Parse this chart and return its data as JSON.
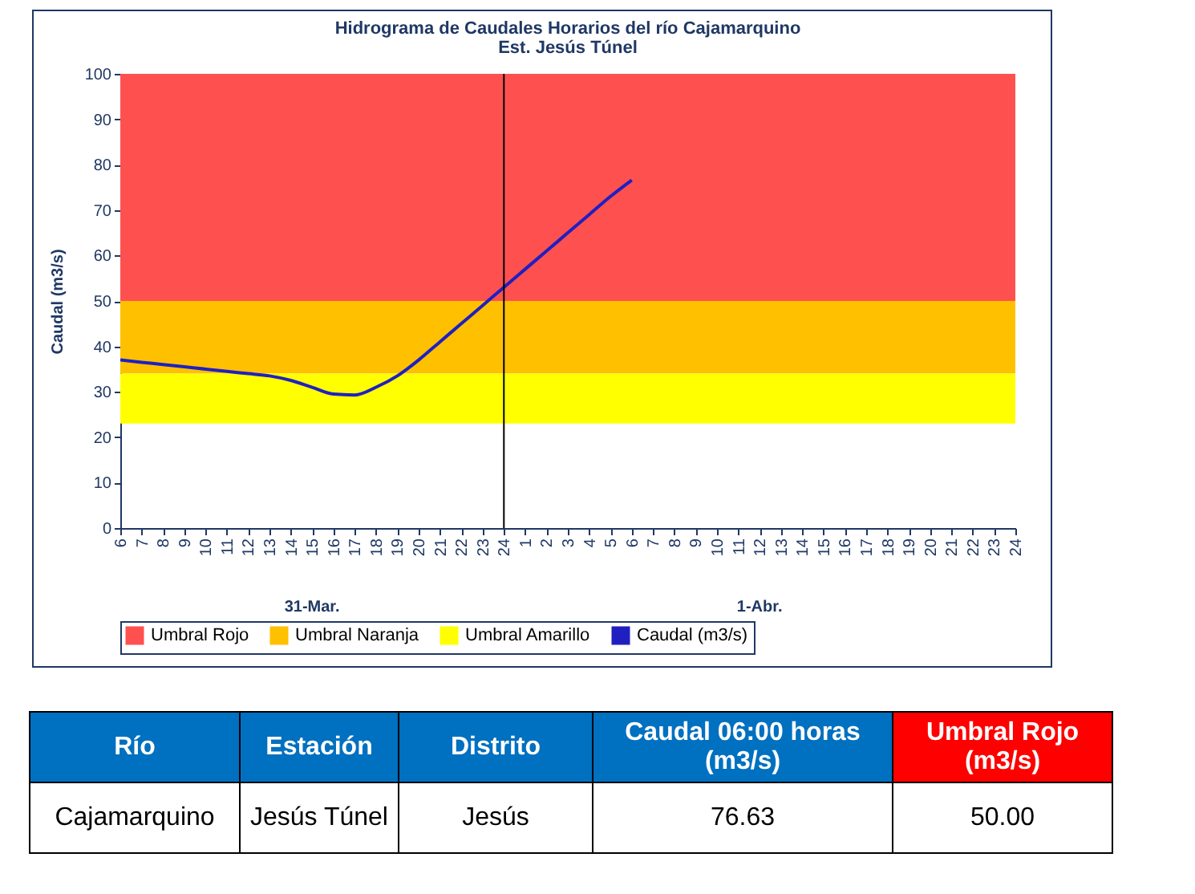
{
  "chart_data": {
    "type": "line",
    "title": "Hidrograma de Caudales Horarios del río Cajamarquino",
    "subtitle": "Est. Jesús Túnel",
    "ylabel": "Caudal  (m3/s)",
    "categories": [
      "6",
      "7",
      "8",
      "9",
      "10",
      "11",
      "12",
      "13",
      "14",
      "15",
      "16",
      "17",
      "18",
      "19",
      "20",
      "21",
      "22",
      "23",
      "24",
      "1",
      "2",
      "3",
      "4",
      "5",
      "6",
      "7",
      "8",
      "9",
      "10",
      "11",
      "12",
      "13",
      "14",
      "15",
      "16",
      "17",
      "18",
      "19",
      "20",
      "21",
      "22",
      "23",
      "24"
    ],
    "series": [
      {
        "name": "Caudal (m3/s)",
        "color": "#2020c0",
        "values": [
          37,
          36.5,
          36,
          35.5,
          35,
          34.5,
          34,
          33.5,
          32.5,
          31,
          29.5,
          29.3,
          31,
          33.5,
          37,
          41,
          45,
          49,
          53,
          57,
          61,
          65,
          69,
          73,
          76.6,
          null,
          null,
          null,
          null,
          null,
          null,
          null,
          null,
          null,
          null,
          null,
          null,
          null,
          null,
          null,
          null,
          null,
          null
        ]
      }
    ],
    "bands": [
      {
        "axis": "y",
        "from": 50,
        "to": 100,
        "label": "Umbral Rojo",
        "color": "#ff5050"
      },
      {
        "axis": "y",
        "from": 34,
        "to": 50,
        "label": "Umbral Naranja",
        "color": "#ffc000"
      },
      {
        "axis": "y",
        "from": 23,
        "to": 34,
        "label": "Umbral Amarillo",
        "color": "#ffff00"
      }
    ],
    "ref_lines": [
      {
        "axis": "x",
        "value": "24",
        "color": "#000000"
      }
    ],
    "ylim": [
      0,
      100
    ],
    "yticks": [
      0,
      10,
      20,
      30,
      40,
      50,
      60,
      70,
      80,
      90,
      100
    ],
    "grid": false,
    "legend": "bottom",
    "marker": "none",
    "line_style": "solid",
    "annotations": [
      "31-Mar.",
      "1-Abr.",
      "Río",
      "Estación",
      "Distrito",
      "Caudal 06:00 horas (m3/s)",
      "Umbral Rojo (m3/s)",
      "Cajamarquino",
      "Jesús Túnel",
      "Jesús",
      "76.63",
      "50.00"
    ]
  }
}
